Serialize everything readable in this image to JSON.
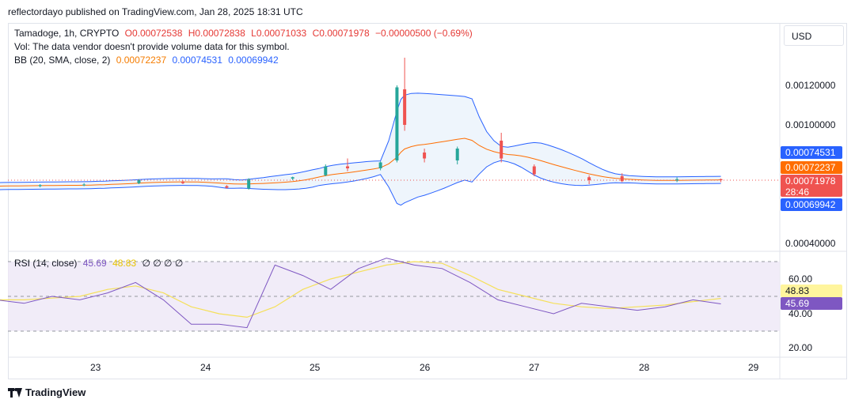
{
  "header": {
    "text": "reflectordayo published on TradingView.com, Jan 28, 2025 18:31 UTC"
  },
  "currency": "USD",
  "legend": {
    "symbol": "Tamadoge, 1h, CRYPTO",
    "open": "O0.00072538",
    "high": "H0.00072838",
    "low": "L0.00071033",
    "close": "C0.00071978",
    "change": "−0.00000500 (−0.69%)",
    "volume_note": "Vol: The data vendor doesn't provide volume data for this symbol.",
    "bb_label": "BB (20, SMA, close, 2)",
    "bb_basis": "0.00072237",
    "bb_upper": "0.00074531",
    "bb_lower": "0.00069942",
    "rsi_label": "RSI (14, close)",
    "rsi_value": "45.69",
    "rsi_ma": "48.83",
    "rsi_zeros": "∅ ∅ ∅ ∅"
  },
  "price_axis": [
    "0.00120000",
    "0.00100000",
    "0.00040000"
  ],
  "price_tags": {
    "upper": "0.00074531",
    "basis": "0.00072237",
    "last": "0.00071978",
    "countdown": "28:46",
    "lower": "0.00069942"
  },
  "rsi_axis": [
    "60.00",
    "40.00",
    "20.00"
  ],
  "rsi_tags": {
    "ma": "48.83",
    "rsi": "45.69"
  },
  "time_axis": [
    "23",
    "24",
    "25",
    "26",
    "27",
    "28",
    "29"
  ],
  "footer": {
    "brand": "TradingView"
  },
  "colors": {
    "up": "#26a69a",
    "down": "#ef5350",
    "bb_band": "#2962ff",
    "bb_basis": "#ff6d00",
    "bb_fill": "#e3effa",
    "rsi": "#7e57c2",
    "rsi_ma": "#f5e05a",
    "rsi_bg": "#ede7f6"
  },
  "chart_data": [
    {
      "type": "candlestick",
      "title": "Tamadoge, 1h, CRYPTO",
      "ylim": [
        0.0003,
        0.00135
      ],
      "x_ticks": [
        "23",
        "24",
        "25",
        "26",
        "27",
        "28",
        "29"
      ],
      "candles_sampled": [
        {
          "day": 22.1,
          "o": 0.000695,
          "h": 0.0007,
          "l": 0.000685,
          "c": 0.00069
        },
        {
          "day": 22.5,
          "o": 0.00069,
          "h": 0.0007,
          "l": 0.000684,
          "c": 0.000695
        },
        {
          "day": 22.9,
          "o": 0.000695,
          "h": 0.000705,
          "l": 0.00069,
          "c": 0.000698
        },
        {
          "day": 23.4,
          "o": 0.000705,
          "h": 0.000725,
          "l": 0.0007,
          "c": 0.00072
        },
        {
          "day": 23.8,
          "o": 0.000712,
          "h": 0.000718,
          "l": 0.0007,
          "c": 0.000705
        },
        {
          "day": 24.2,
          "o": 0.00069,
          "h": 0.000695,
          "l": 0.000678,
          "c": 0.000682
        },
        {
          "day": 24.4,
          "o": 0.000678,
          "h": 0.00073,
          "l": 0.000672,
          "c": 0.000725
        },
        {
          "day": 24.8,
          "o": 0.000728,
          "h": 0.000738,
          "l": 0.00072,
          "c": 0.000735
        },
        {
          "day": 25.1,
          "o": 0.000745,
          "h": 0.0008,
          "l": 0.00074,
          "c": 0.00079
        },
        {
          "day": 25.3,
          "o": 0.00079,
          "h": 0.00083,
          "l": 0.000765,
          "c": 0.00078
        },
        {
          "day": 25.6,
          "o": 0.00078,
          "h": 0.000815,
          "l": 0.00077,
          "c": 0.00081
        },
        {
          "day": 25.75,
          "o": 0.00082,
          "h": 0.0012,
          "l": 0.00081,
          "c": 0.00119
        },
        {
          "day": 25.82,
          "o": 0.00118,
          "h": 0.00134,
          "l": 0.00097,
          "c": 0.001
        },
        {
          "day": 26.0,
          "o": 0.00086,
          "h": 0.00088,
          "l": 0.00081,
          "c": 0.00083
        },
        {
          "day": 26.3,
          "o": 0.00082,
          "h": 0.00089,
          "l": 0.0008,
          "c": 0.00088
        },
        {
          "day": 26.7,
          "o": 0.00092,
          "h": 0.00096,
          "l": 0.00081,
          "c": 0.00083
        },
        {
          "day": 27.0,
          "o": 0.00079,
          "h": 0.0008,
          "l": 0.00074,
          "c": 0.00075
        },
        {
          "day": 27.5,
          "o": 0.000735,
          "h": 0.000745,
          "l": 0.0007,
          "c": 0.00072
        },
        {
          "day": 27.8,
          "o": 0.00074,
          "h": 0.000755,
          "l": 0.00071,
          "c": 0.000715
        },
        {
          "day": 28.3,
          "o": 0.000718,
          "h": 0.000735,
          "l": 0.00071,
          "c": 0.000725
        },
        {
          "day": 28.7,
          "o": 0.000725,
          "h": 0.000728,
          "l": 0.00071,
          "c": 0.00072
        }
      ],
      "bollinger": {
        "period": 20,
        "last": {
          "upper": 0.00074531,
          "basis": 0.00072237,
          "lower": 0.00069942
        }
      },
      "last_price": 0.00071978
    },
    {
      "type": "line",
      "title": "RSI (14, close)",
      "ylim": [
        14,
        80
      ],
      "bands": [
        30,
        50,
        70
      ],
      "series": [
        {
          "name": "RSI",
          "values": [
            48,
            46,
            50,
            48,
            52,
            58,
            48,
            34,
            34,
            32,
            68,
            62,
            54,
            66,
            72,
            68,
            66,
            58,
            48,
            44,
            40,
            46,
            44,
            42,
            44,
            48,
            45.69
          ]
        },
        {
          "name": "RSI-based MA",
          "values": [
            48,
            48,
            49,
            50,
            54,
            56,
            52,
            44,
            40,
            38,
            44,
            54,
            60,
            64,
            68,
            70,
            69,
            62,
            54,
            50,
            46,
            44,
            43,
            44,
            45,
            47,
            48.83
          ]
        }
      ],
      "last": {
        "rsi": 45.69,
        "ma": 48.83
      }
    }
  ]
}
